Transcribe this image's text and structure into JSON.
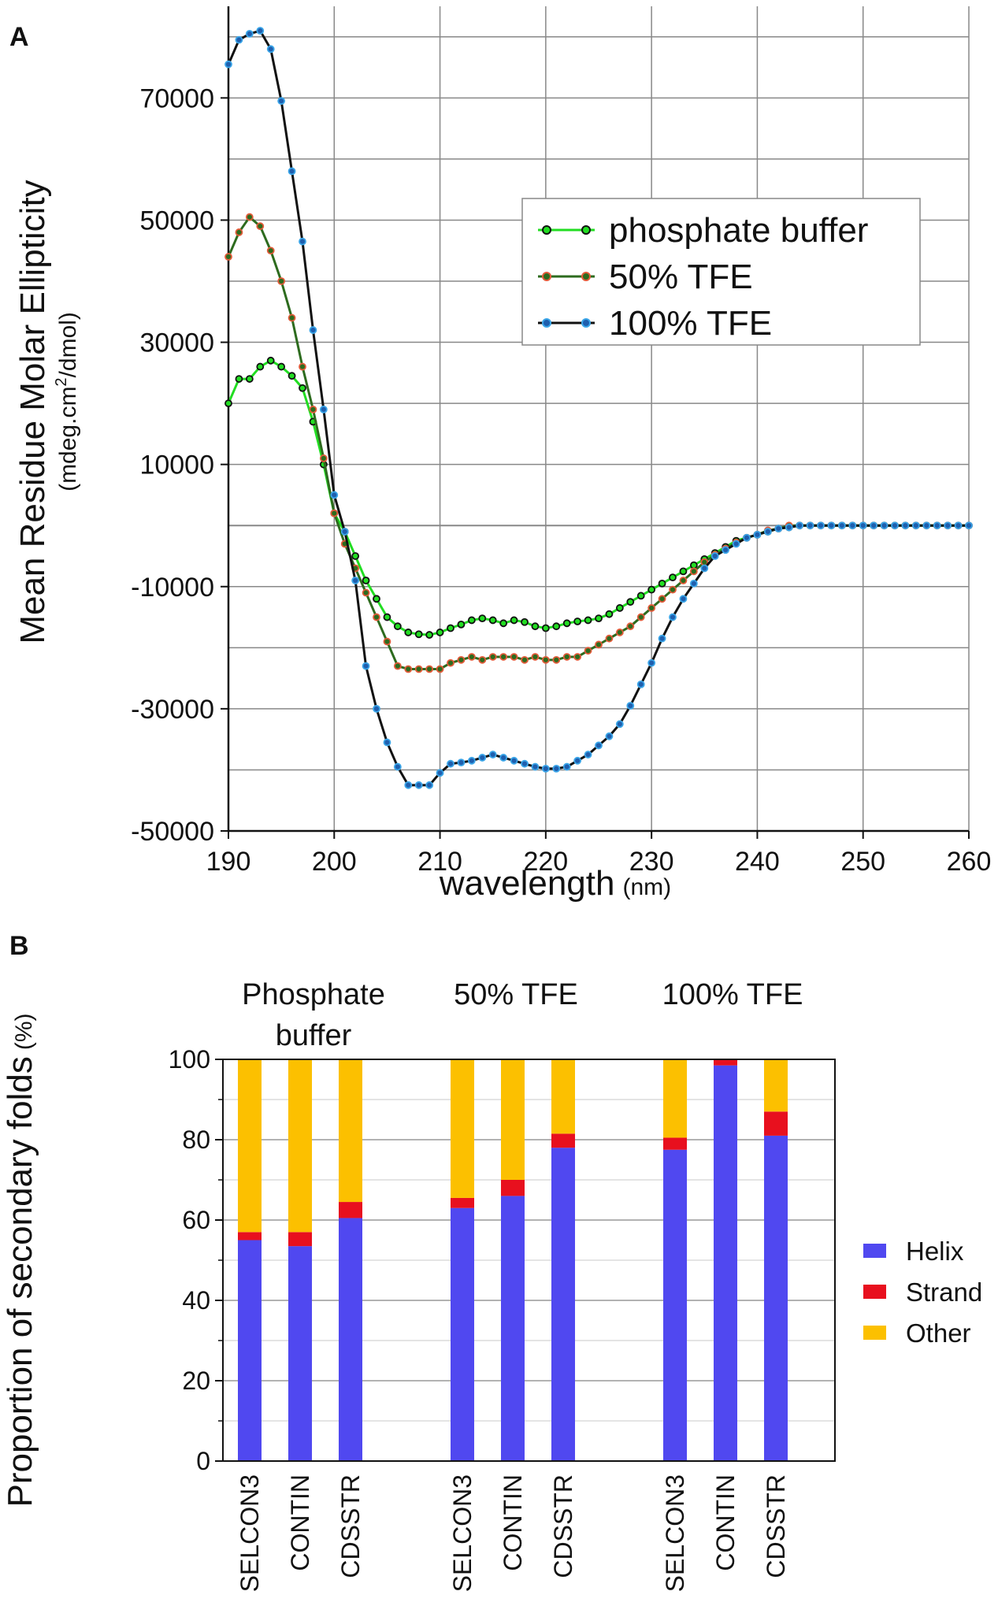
{
  "panels": {
    "a_label": "A",
    "b_label": "B"
  },
  "colors": {
    "phosphate_line": "#22dd22",
    "phosphate_marker_fill": "#22dd22",
    "phosphate_marker_edge": "#111111",
    "tfe50_line": "#2d6b1e",
    "tfe50_marker_fill": "#2d6b1e",
    "tfe50_marker_edge": "#e25b3a",
    "tfe100_line": "#111111",
    "tfe100_marker_fill": "#1f5fae",
    "tfe100_marker_edge": "#3aa5e8",
    "helix": "#5048f0",
    "strand": "#e8101e",
    "other": "#fcc000",
    "grid": "#888888"
  },
  "chart_data": [
    {
      "type": "line",
      "panel": "A",
      "title": "",
      "xlabel": "wavelength",
      "xlabel_unit": "(nm)",
      "ylabel": "Mean Residue Molar Ellipticity",
      "ylabel_unit_pre": "(mdeg.cm",
      "ylabel_unit_sup": "2",
      "ylabel_unit_post": "/dmol)",
      "xlim": [
        190,
        260
      ],
      "ylim": [
        -50000,
        85000
      ],
      "xticks": [
        190,
        200,
        210,
        220,
        230,
        240,
        250,
        260
      ],
      "yticks": [
        -50000,
        -30000,
        -10000,
        10000,
        30000,
        50000,
        70000
      ],
      "xgrid_step": 10,
      "ygrid_step": 10000,
      "x": [
        190,
        191,
        192,
        193,
        194,
        195,
        196,
        197,
        198,
        199,
        200,
        201,
        202,
        203,
        204,
        205,
        206,
        207,
        208,
        209,
        210,
        211,
        212,
        213,
        214,
        215,
        216,
        217,
        218,
        219,
        220,
        221,
        222,
        223,
        224,
        225,
        226,
        227,
        228,
        229,
        230,
        231,
        232,
        233,
        234,
        235,
        236,
        237,
        238,
        239,
        240,
        241,
        242,
        243,
        244,
        245,
        246,
        247,
        248,
        249,
        250,
        251,
        252,
        253,
        254,
        255,
        256,
        257,
        258,
        259,
        260
      ],
      "legend_position": "upper-right",
      "series": [
        {
          "name": "phosphate buffer",
          "values": [
            20000,
            24000,
            24000,
            26000,
            27000,
            26000,
            24500,
            22500,
            17000,
            10000,
            2000,
            -1000,
            -5000,
            -9000,
            -12000,
            -15000,
            -16500,
            -17500,
            -17800,
            -17900,
            -17500,
            -16800,
            -16200,
            -15500,
            -15200,
            -15500,
            -16000,
            -15500,
            -15800,
            -16500,
            -16800,
            -16500,
            -16000,
            -15700,
            -15500,
            -15200,
            -14500,
            -13500,
            -12500,
            -11500,
            -10500,
            -9500,
            -8500,
            -7500,
            -6500,
            -5500,
            -4500,
            -3500,
            -2500,
            -2000,
            -1500,
            -1000,
            -500,
            -300,
            0,
            0,
            0,
            0,
            0,
            0,
            0,
            0,
            0,
            0,
            0,
            0,
            0,
            0,
            0,
            0,
            0
          ]
        },
        {
          "name": "50% TFE",
          "values": [
            44000,
            48000,
            50500,
            49000,
            45000,
            40000,
            34000,
            26000,
            19000,
            11000,
            2000,
            -3000,
            -7000,
            -11000,
            -15000,
            -19000,
            -23000,
            -23500,
            -23500,
            -23500,
            -23500,
            -22500,
            -22000,
            -21500,
            -22000,
            -21500,
            -21500,
            -21500,
            -22000,
            -21500,
            -22000,
            -22000,
            -21500,
            -21500,
            -20500,
            -19500,
            -18500,
            -17500,
            -16500,
            -15000,
            -13500,
            -12000,
            -10500,
            -9000,
            -7500,
            -6000,
            -4800,
            -3800,
            -2800,
            -2000,
            -1500,
            -800,
            -500,
            0,
            0,
            0,
            0,
            0,
            0,
            0,
            0,
            0,
            0,
            0,
            0,
            0,
            0,
            0,
            0,
            0,
            0
          ]
        },
        {
          "name": "100% TFE",
          "values": [
            75500,
            79500,
            80500,
            81000,
            78000,
            69500,
            58000,
            46500,
            32000,
            19000,
            5000,
            -1000,
            -9000,
            -23000,
            -30000,
            -35500,
            -39500,
            -42500,
            -42500,
            -42500,
            -40500,
            -39000,
            -38800,
            -38500,
            -38000,
            -37500,
            -38000,
            -38500,
            -39000,
            -39500,
            -39800,
            -39800,
            -39500,
            -38500,
            -37500,
            -36000,
            -34500,
            -32500,
            -29500,
            -26000,
            -22500,
            -18500,
            -15000,
            -12000,
            -9500,
            -7000,
            -5000,
            -4000,
            -3000,
            -2000,
            -1500,
            -1000,
            -500,
            -300,
            0,
            0,
            0,
            0,
            0,
            0,
            0,
            0,
            0,
            0,
            0,
            0,
            0,
            0,
            0,
            0,
            0
          ]
        }
      ]
    },
    {
      "type": "bar",
      "stacked": true,
      "panel": "B",
      "ylabel": "Proportion of secondary folds",
      "ylabel_unit": "(%)",
      "ylim": [
        0,
        100
      ],
      "yticks": [
        0,
        20,
        40,
        60,
        80,
        100
      ],
      "group_labels": [
        [
          "Phosphate",
          "buffer"
        ],
        [
          "50% TFE"
        ],
        [
          "100% TFE"
        ]
      ],
      "methods": [
        "SELCON3",
        "CONTIN",
        "CDSSTR"
      ],
      "categories": [
        "SELCON3",
        "CONTIN",
        "CDSSTR",
        "SELCON3",
        "CONTIN",
        "CDSSTR",
        "SELCON3",
        "CONTIN",
        "CDSSTR"
      ],
      "legend_position": "right",
      "series": [
        {
          "name": "Helix",
          "values": [
            55,
            53.5,
            60.5,
            63,
            66,
            78,
            77.5,
            98.5,
            81
          ]
        },
        {
          "name": "Strand",
          "values": [
            2,
            3.5,
            4,
            2.5,
            4,
            3.5,
            3,
            1.5,
            6
          ]
        },
        {
          "name": "Other",
          "values": [
            43,
            43,
            35.5,
            34.5,
            30,
            18.5,
            19.5,
            0,
            13
          ]
        }
      ]
    }
  ]
}
